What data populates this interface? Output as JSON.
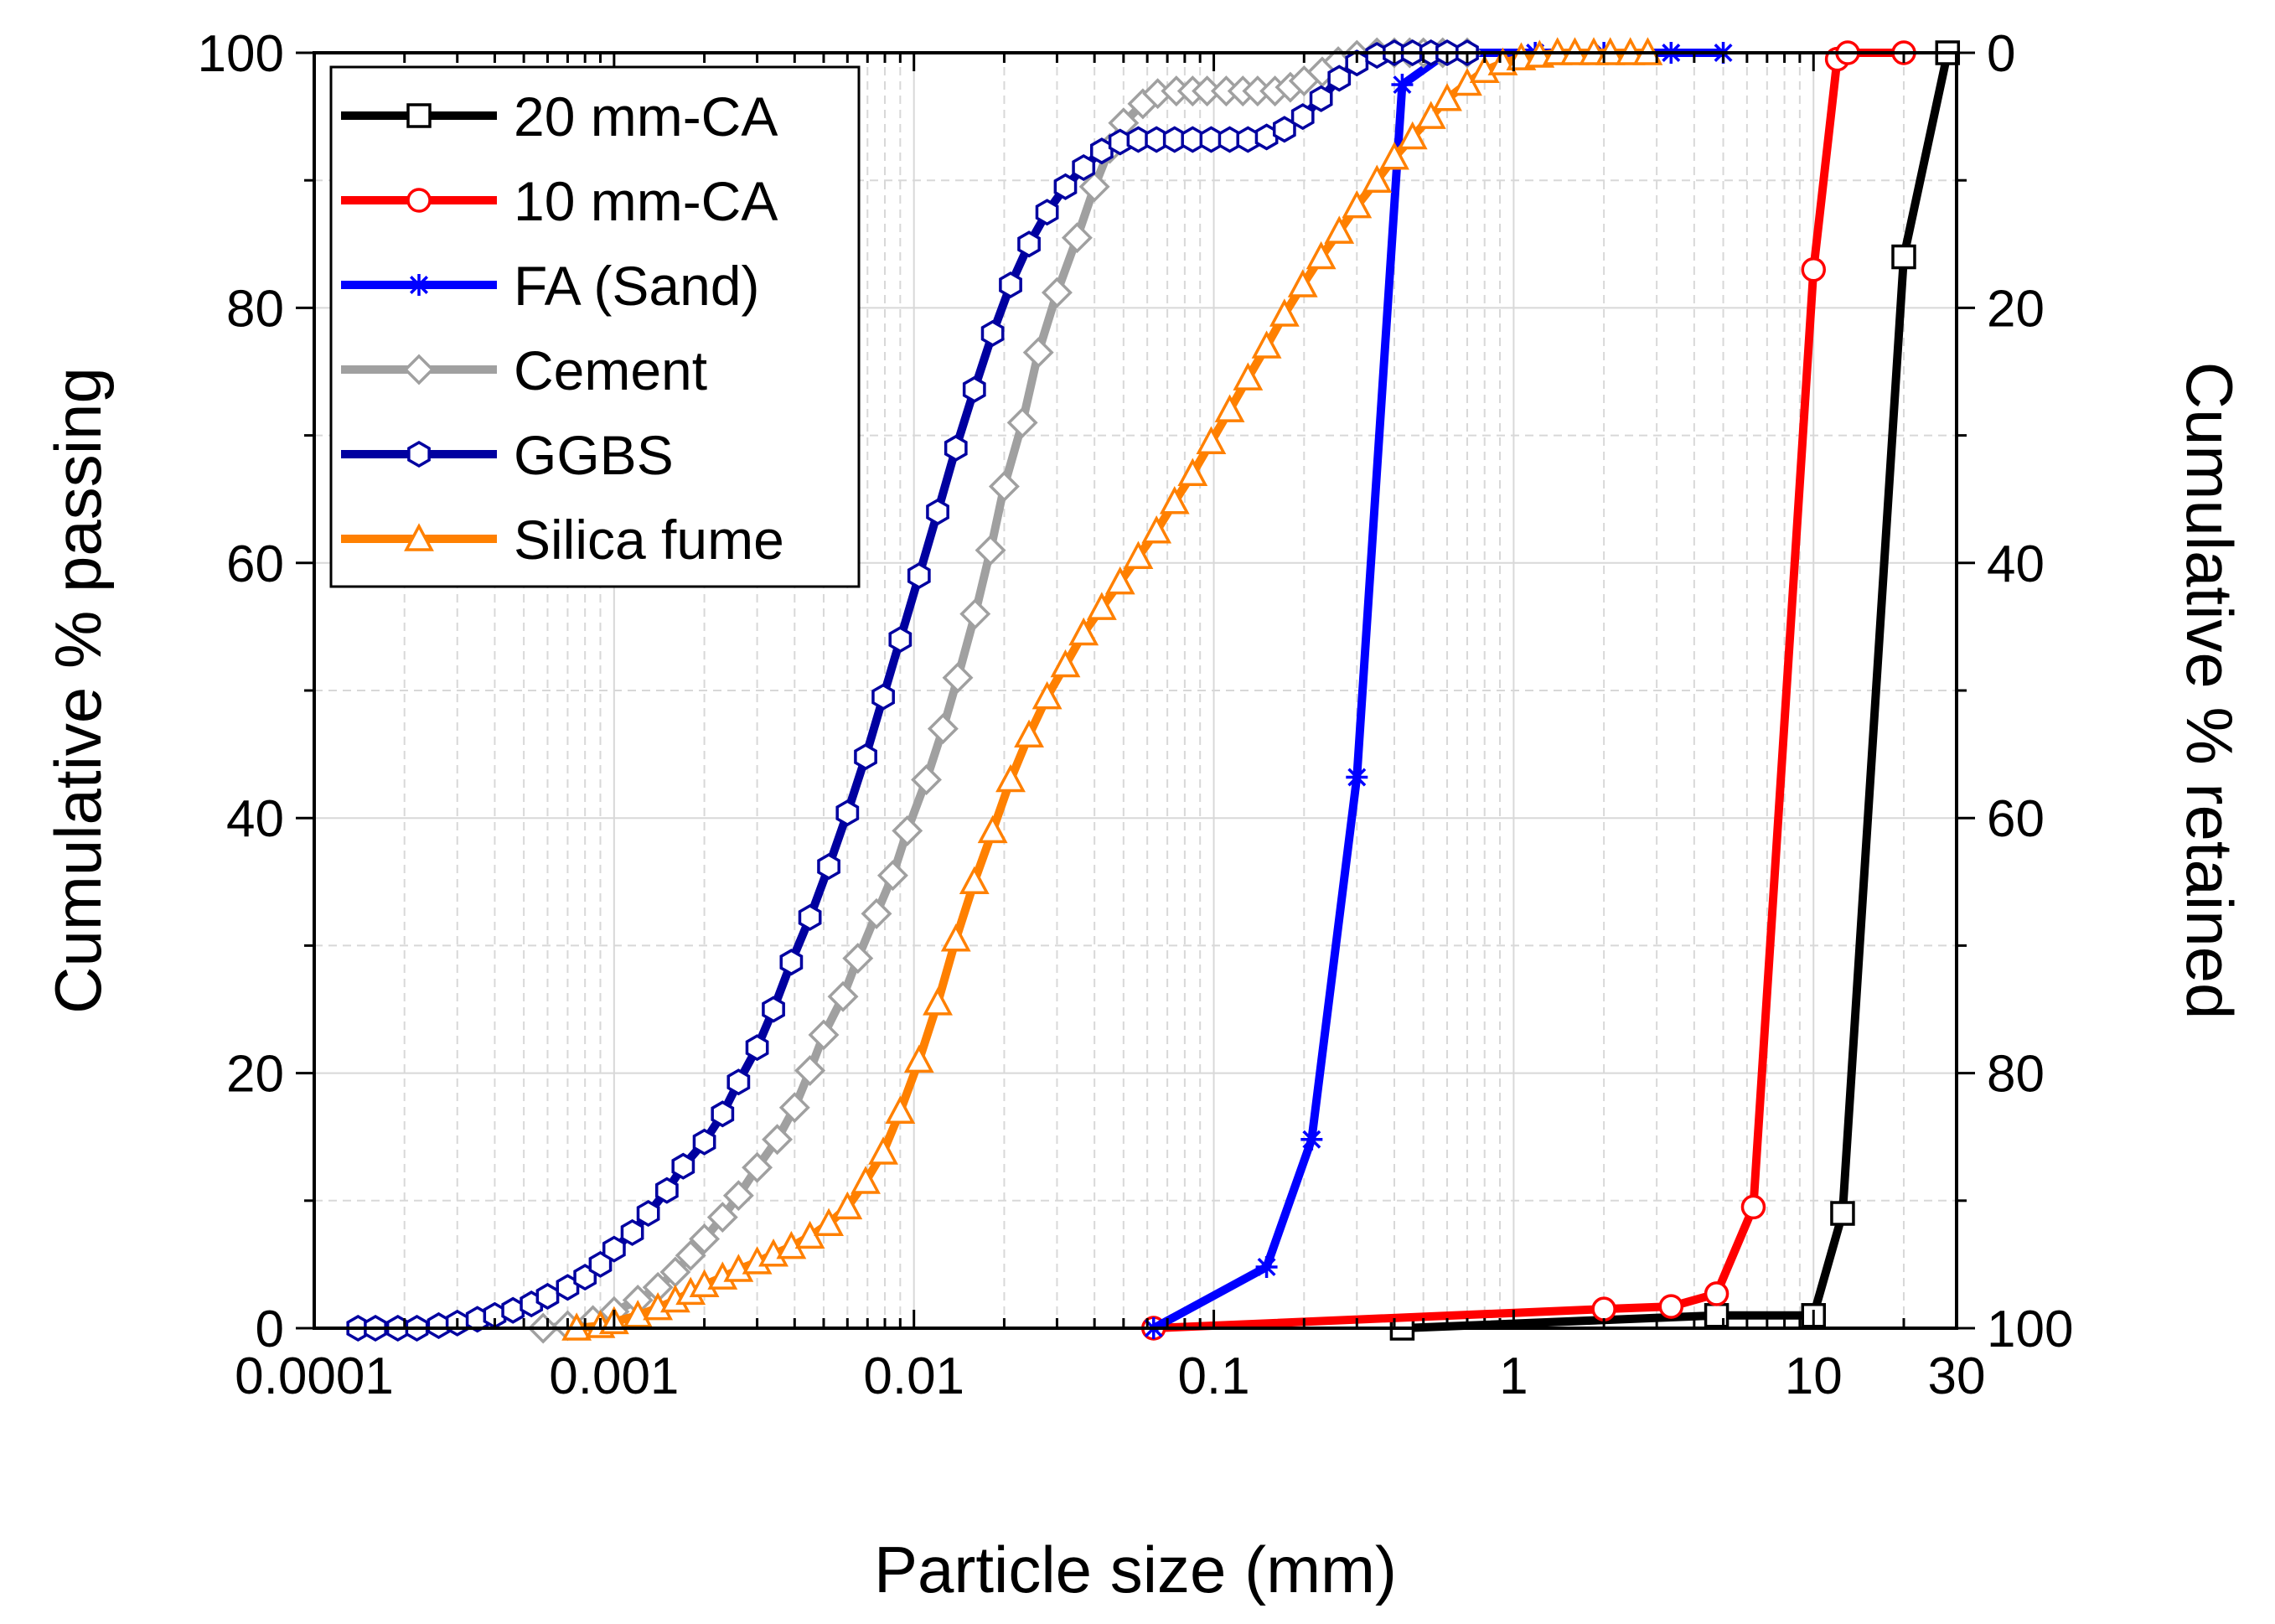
{
  "chart_data": {
    "type": "line",
    "title": "",
    "xlabel": "Particle size (mm)",
    "ylabel": "Cumulative % passing",
    "y2label": "Cumulative % retained",
    "xscale": "log",
    "xlim": [
      0.0001,
      30
    ],
    "ylim": [
      0,
      100
    ],
    "y2lim": [
      100,
      0
    ],
    "grid": true,
    "legend_position": "top-left",
    "x_ticks": [
      0.0001,
      0.001,
      0.01,
      0.1,
      1,
      10,
      30
    ],
    "x_tick_labels": [
      "0.0001",
      "0.001",
      "0.01",
      "0.1",
      "1",
      "10",
      "30"
    ],
    "y_ticks": [
      0,
      20,
      40,
      60,
      80,
      100
    ],
    "y_tick_labels": [
      "0",
      "20",
      "40",
      "60",
      "80",
      "100"
    ],
    "y2_tick_labels": [
      "100",
      "80",
      "60",
      "40",
      "20",
      "0"
    ],
    "series": [
      {
        "name": "20 mm-CA",
        "color": "#000000",
        "marker": "square",
        "x": [
          0.425,
          4.75,
          10,
          12.5,
          20,
          28
        ],
        "y": [
          0,
          1,
          1,
          9,
          84,
          100
        ]
      },
      {
        "name": "10 mm-CA",
        "color": "#ff0000",
        "marker": "circle",
        "x": [
          0.063,
          2,
          3.35,
          4.75,
          6.3,
          10,
          12,
          13,
          20
        ],
        "y": [
          0,
          1.5,
          1.7,
          2.7,
          9.5,
          83,
          99.5,
          100,
          100
        ]
      },
      {
        "name": "FA (Sand)",
        "color": "#0000ff",
        "marker": "star",
        "x": [
          0.063,
          0.15,
          0.212,
          0.3,
          0.425,
          0.6,
          1.18,
          2,
          3.35,
          5
        ],
        "y": [
          0,
          4.8,
          14.8,
          43.2,
          97.5,
          100,
          100,
          100,
          100,
          100
        ]
      },
      {
        "name": "Cement",
        "color": "#a0a0a0",
        "marker": "diamond",
        "x": [
          0.00058,
          0.0007,
          0.00085,
          0.001,
          0.0012,
          0.0014,
          0.0016,
          0.0018,
          0.002,
          0.0023,
          0.0026,
          0.003,
          0.0035,
          0.004,
          0.0045,
          0.005,
          0.0058,
          0.0065,
          0.0075,
          0.0085,
          0.0095,
          0.011,
          0.0125,
          0.014,
          0.016,
          0.018,
          0.02,
          0.023,
          0.026,
          0.03,
          0.035,
          0.04,
          0.045,
          0.05,
          0.058,
          0.065,
          0.075,
          0.085,
          0.095,
          0.11,
          0.125,
          0.14,
          0.16,
          0.18,
          0.2,
          0.23,
          0.26,
          0.3,
          0.35,
          0.4,
          0.45,
          0.5,
          0.58,
          0.7
        ],
        "y": [
          0,
          0.2,
          0.6,
          1.3,
          2.2,
          3.2,
          4.4,
          5.7,
          7.0,
          8.7,
          10.4,
          12.6,
          14.8,
          17.3,
          20.2,
          23.0,
          26.0,
          29.0,
          32.5,
          35.5,
          39.0,
          43.0,
          47.0,
          51.0,
          56.0,
          61.0,
          66.0,
          71.0,
          76.5,
          81.2,
          85.5,
          89.5,
          92.5,
          94.5,
          96.0,
          96.8,
          97.0,
          97.0,
          97.0,
          97.0,
          97.0,
          97.0,
          97.0,
          97.3,
          97.8,
          98.5,
          99.3,
          99.8,
          100,
          100,
          100,
          100,
          100,
          100
        ]
      },
      {
        "name": "GGBS",
        "color": "#0000a0",
        "marker": "hexagon",
        "x": [
          0.00014,
          0.00016,
          0.00019,
          0.00022,
          0.00026,
          0.0003,
          0.00035,
          0.0004,
          0.00046,
          0.00053,
          0.0006,
          0.0007,
          0.0008,
          0.0009,
          0.001,
          0.00115,
          0.0013,
          0.0015,
          0.0017,
          0.002,
          0.0023,
          0.0026,
          0.003,
          0.0034,
          0.0039,
          0.0045,
          0.0052,
          0.006,
          0.0069,
          0.0079,
          0.009,
          0.0104,
          0.012,
          0.0138,
          0.0159,
          0.0183,
          0.021,
          0.0242,
          0.0278,
          0.032,
          0.0368,
          0.0423,
          0.0487,
          0.056,
          0.0644,
          0.074,
          0.085,
          0.098,
          0.113,
          0.13,
          0.15,
          0.172,
          0.198,
          0.228,
          0.262,
          0.3,
          0.35,
          0.4,
          0.46,
          0.53,
          0.6,
          0.7
        ],
        "y": [
          0,
          0,
          0,
          0,
          0.2,
          0.4,
          0.7,
          1.0,
          1.4,
          1.9,
          2.5,
          3.2,
          4.0,
          5.0,
          6.2,
          7.5,
          9.0,
          10.8,
          12.7,
          14.6,
          16.8,
          19.3,
          22.0,
          25.0,
          28.7,
          32.2,
          36.2,
          40.4,
          44.8,
          49.5,
          54.0,
          59.0,
          64.0,
          69.0,
          73.6,
          78.0,
          81.8,
          85.0,
          87.5,
          89.5,
          91.0,
          92.3,
          93.0,
          93.2,
          93.2,
          93.2,
          93.2,
          93.2,
          93.2,
          93.2,
          93.4,
          94.0,
          95.0,
          96.4,
          98.0,
          99.2,
          99.8,
          100,
          100,
          100,
          100,
          100
        ]
      },
      {
        "name": "Silica fume",
        "color": "#ff8000",
        "marker": "triangle",
        "x": [
          0.00075,
          0.0009,
          0.001,
          0.0012,
          0.0014,
          0.0016,
          0.0018,
          0.002,
          0.0023,
          0.0026,
          0.003,
          0.0034,
          0.0039,
          0.0045,
          0.0052,
          0.006,
          0.0069,
          0.0079,
          0.009,
          0.0104,
          0.012,
          0.0138,
          0.0159,
          0.0183,
          0.021,
          0.0242,
          0.0278,
          0.032,
          0.0368,
          0.0423,
          0.0487,
          0.056,
          0.0644,
          0.074,
          0.085,
          0.098,
          0.113,
          0.13,
          0.15,
          0.172,
          0.198,
          0.228,
          0.262,
          0.3,
          0.35,
          0.4,
          0.46,
          0.53,
          0.6,
          0.7,
          0.8,
          0.92,
          1.06,
          1.22,
          1.4,
          1.6,
          1.85,
          2.1,
          2.45,
          2.8
        ],
        "y": [
          0,
          0.2,
          0.5,
          1.0,
          1.6,
          2.2,
          2.8,
          3.4,
          4.0,
          4.6,
          5.2,
          5.8,
          6.4,
          7.2,
          8.2,
          9.5,
          11.5,
          13.8,
          17.0,
          21.0,
          25.5,
          30.5,
          35.0,
          39.0,
          43.0,
          46.5,
          49.5,
          52.0,
          54.5,
          56.5,
          58.5,
          60.5,
          62.5,
          64.8,
          67.0,
          69.5,
          72.0,
          74.5,
          77.0,
          79.5,
          81.8,
          84.0,
          86.0,
          88.0,
          90.0,
          91.8,
          93.4,
          95.0,
          96.4,
          97.6,
          98.6,
          99.2,
          99.6,
          99.8,
          100,
          100,
          100,
          100,
          100,
          100
        ]
      }
    ]
  }
}
